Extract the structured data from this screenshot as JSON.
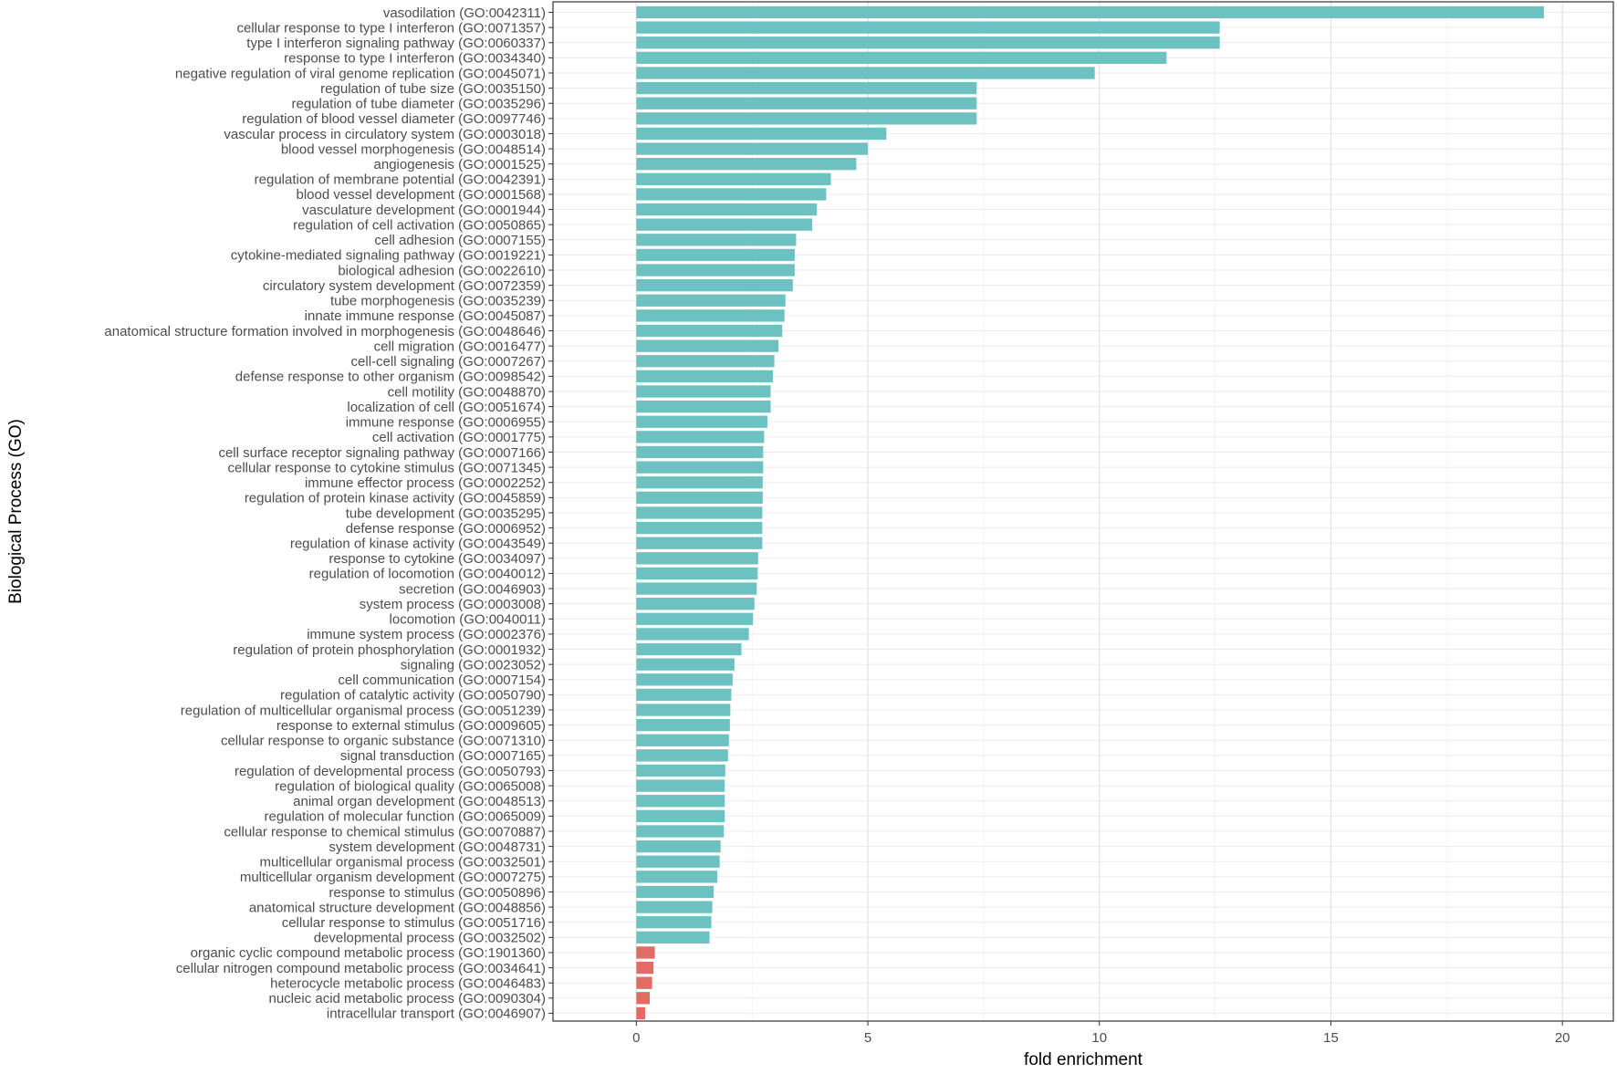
{
  "chart_data": {
    "type": "bar",
    "orientation": "horizontal",
    "xlabel": "fold enrichment",
    "ylabel": "Biological Process (GO)",
    "xlim": [
      -1.8,
      21.1
    ],
    "xticks": [
      0,
      5,
      10,
      15,
      20
    ],
    "grid": true,
    "colors": {
      "enriched": "#6ec1c1",
      "depleted": "#e06c63"
    },
    "categories": [
      "vasodilation (GO:0042311)",
      "cellular response to type I interferon (GO:0071357)",
      "type I interferon signaling pathway (GO:0060337)",
      "response to type I interferon (GO:0034340)",
      "negative regulation of viral genome replication (GO:0045071)",
      "regulation of tube size (GO:0035150)",
      "regulation of tube diameter (GO:0035296)",
      "regulation of blood vessel diameter (GO:0097746)",
      "vascular process in circulatory system (GO:0003018)",
      "blood vessel morphogenesis (GO:0048514)",
      "angiogenesis (GO:0001525)",
      "regulation of membrane potential (GO:0042391)",
      "blood vessel development (GO:0001568)",
      "vasculature development (GO:0001944)",
      "regulation of cell activation (GO:0050865)",
      "cell adhesion (GO:0007155)",
      "cytokine-mediated signaling pathway (GO:0019221)",
      "biological adhesion (GO:0022610)",
      "circulatory system development (GO:0072359)",
      "tube morphogenesis (GO:0035239)",
      "innate immune response (GO:0045087)",
      "anatomical structure formation involved in morphogenesis (GO:0048646)",
      "cell migration (GO:0016477)",
      "cell-cell signaling (GO:0007267)",
      "defense response to other organism (GO:0098542)",
      "cell motility (GO:0048870)",
      "localization of cell (GO:0051674)",
      "immune response (GO:0006955)",
      "cell activation (GO:0001775)",
      "cell surface receptor signaling pathway (GO:0007166)",
      "cellular response to cytokine stimulus (GO:0071345)",
      "immune effector process (GO:0002252)",
      "regulation of protein kinase activity (GO:0045859)",
      "tube development (GO:0035295)",
      "defense response (GO:0006952)",
      "regulation of kinase activity (GO:0043549)",
      "response to cytokine (GO:0034097)",
      "regulation of locomotion (GO:0040012)",
      "secretion (GO:0046903)",
      "system process (GO:0003008)",
      "locomotion (GO:0040011)",
      "immune system process (GO:0002376)",
      "regulation of protein phosphorylation (GO:0001932)",
      "signaling (GO:0023052)",
      "cell communication (GO:0007154)",
      "regulation of catalytic activity (GO:0050790)",
      "regulation of multicellular organismal process (GO:0051239)",
      "response to external stimulus (GO:0009605)",
      "cellular response to organic substance (GO:0071310)",
      "signal transduction (GO:0007165)",
      "regulation of developmental process (GO:0050793)",
      "regulation of biological quality (GO:0065008)",
      "animal organ development (GO:0048513)",
      "regulation of molecular function (GO:0065009)",
      "cellular response to chemical stimulus (GO:0070887)",
      "system development (GO:0048731)",
      "multicellular organismal process (GO:0032501)",
      "multicellular organism development (GO:0007275)",
      "response to stimulus (GO:0050896)",
      "anatomical structure development (GO:0048856)",
      "cellular response to stimulus (GO:0051716)",
      "developmental process (GO:0032502)",
      "organic cyclic compound metabolic process (GO:1901360)",
      "cellular nitrogen compound metabolic process (GO:0034641)",
      "heterocycle metabolic process (GO:0046483)",
      "nucleic acid metabolic process (GO:0090304)",
      "intracellular transport (GO:0046907)"
    ],
    "values": [
      19.6,
      12.6,
      12.6,
      11.45,
      9.9,
      7.35,
      7.35,
      7.35,
      5.4,
      5.0,
      4.75,
      4.2,
      4.1,
      3.9,
      3.8,
      3.45,
      3.42,
      3.42,
      3.38,
      3.22,
      3.2,
      3.15,
      3.07,
      2.98,
      2.95,
      2.9,
      2.9,
      2.83,
      2.76,
      2.74,
      2.74,
      2.73,
      2.73,
      2.72,
      2.72,
      2.72,
      2.63,
      2.62,
      2.6,
      2.55,
      2.52,
      2.43,
      2.27,
      2.12,
      2.08,
      2.05,
      2.03,
      2.02,
      2.0,
      1.98,
      1.92,
      1.91,
      1.91,
      1.91,
      1.89,
      1.82,
      1.8,
      1.75,
      1.67,
      1.64,
      1.62,
      1.58,
      0.4,
      0.37,
      0.34,
      0.29,
      0.19
    ],
    "groups": [
      "enriched",
      "enriched",
      "enriched",
      "enriched",
      "enriched",
      "enriched",
      "enriched",
      "enriched",
      "enriched",
      "enriched",
      "enriched",
      "enriched",
      "enriched",
      "enriched",
      "enriched",
      "enriched",
      "enriched",
      "enriched",
      "enriched",
      "enriched",
      "enriched",
      "enriched",
      "enriched",
      "enriched",
      "enriched",
      "enriched",
      "enriched",
      "enriched",
      "enriched",
      "enriched",
      "enriched",
      "enriched",
      "enriched",
      "enriched",
      "enriched",
      "enriched",
      "enriched",
      "enriched",
      "enriched",
      "enriched",
      "enriched",
      "enriched",
      "enriched",
      "enriched",
      "enriched",
      "enriched",
      "enriched",
      "enriched",
      "enriched",
      "enriched",
      "enriched",
      "enriched",
      "enriched",
      "enriched",
      "enriched",
      "enriched",
      "enriched",
      "enriched",
      "enriched",
      "enriched",
      "enriched",
      "enriched",
      "depleted",
      "depleted",
      "depleted",
      "depleted",
      "depleted"
    ]
  }
}
